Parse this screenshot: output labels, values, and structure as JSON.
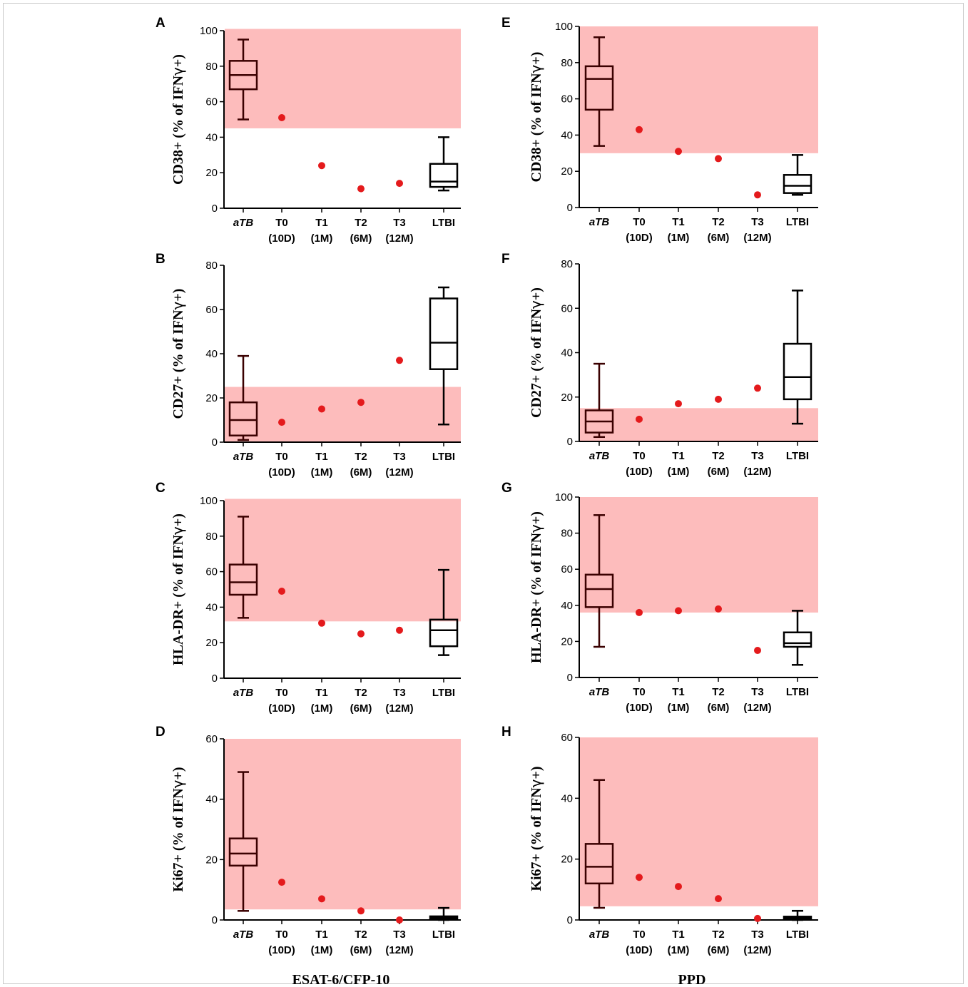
{
  "figure": {
    "group_labels": [
      "ESAT-6/CFP-10",
      "PPD"
    ]
  },
  "chart_data": [
    {
      "panel": "A",
      "type": "box",
      "ylabel_main": "CD38+ (% of IFN",
      "ylabel_greek": "γ",
      "ylabel_end": "+)",
      "ylim": [
        0,
        100
      ],
      "yticks": [
        0,
        20,
        40,
        60,
        80,
        100
      ],
      "categories": [
        [
          "aTB"
        ],
        [
          "T0",
          "(10D)"
        ],
        [
          "T1",
          "(1M)"
        ],
        [
          "T2",
          "(6M)"
        ],
        [
          "T3",
          "(12M)"
        ],
        [
          "LTBI"
        ]
      ],
      "shaded_range": [
        45,
        101
      ],
      "boxes": [
        {
          "category_index": 0,
          "min": 50,
          "q1": 67,
          "median": 75,
          "q3": 83,
          "max": 95,
          "color": "#3a0000"
        },
        {
          "category_index": 5,
          "min": 10,
          "q1": 12,
          "median": 15,
          "q3": 25,
          "max": 40,
          "color": "#000000"
        }
      ],
      "points": [
        {
          "category_index": 1,
          "y": 51
        },
        {
          "category_index": 2,
          "y": 24
        },
        {
          "category_index": 3,
          "y": 11
        },
        {
          "category_index": 4,
          "y": 14
        }
      ]
    },
    {
      "panel": "B",
      "type": "box",
      "ylabel_main": "CD27+ (% of IFN",
      "ylabel_greek": "γ",
      "ylabel_end": "+)",
      "ylim": [
        0,
        80
      ],
      "yticks": [
        0,
        20,
        40,
        60,
        80
      ],
      "categories": [
        [
          "aTB"
        ],
        [
          "T0",
          "(10D)"
        ],
        [
          "T1",
          "(1M)"
        ],
        [
          "T2",
          "(6M)"
        ],
        [
          "T3",
          "(12M)"
        ],
        [
          "LTBI"
        ]
      ],
      "shaded_range": [
        0,
        25
      ],
      "boxes": [
        {
          "category_index": 0,
          "min": 1,
          "q1": 3,
          "median": 10,
          "q3": 18,
          "max": 39,
          "color": "#3a0000"
        },
        {
          "category_index": 5,
          "min": 8,
          "q1": 33,
          "median": 45,
          "q3": 65,
          "max": 70,
          "color": "#000000"
        }
      ],
      "points": [
        {
          "category_index": 1,
          "y": 9
        },
        {
          "category_index": 2,
          "y": 15
        },
        {
          "category_index": 3,
          "y": 18
        },
        {
          "category_index": 4,
          "y": 37
        }
      ]
    },
    {
      "panel": "C",
      "type": "box",
      "ylabel_main": "HLA-DR+ (% of IFN",
      "ylabel_greek": "γ",
      "ylabel_end": "+)",
      "ylim": [
        0,
        100
      ],
      "yticks": [
        0,
        20,
        40,
        60,
        80,
        100
      ],
      "categories": [
        [
          "aTB"
        ],
        [
          "T0",
          "(10D)"
        ],
        [
          "T1",
          "(1M)"
        ],
        [
          "T2",
          "(6M)"
        ],
        [
          "T3",
          "(12M)"
        ],
        [
          "LTBI"
        ]
      ],
      "shaded_range": [
        32,
        101
      ],
      "boxes": [
        {
          "category_index": 0,
          "min": 34,
          "q1": 47,
          "median": 54,
          "q3": 64,
          "max": 91,
          "color": "#3a0000"
        },
        {
          "category_index": 5,
          "min": 13,
          "q1": 18,
          "median": 27,
          "q3": 33,
          "max": 61,
          "color": "#000000"
        }
      ],
      "points": [
        {
          "category_index": 1,
          "y": 49
        },
        {
          "category_index": 2,
          "y": 31
        },
        {
          "category_index": 3,
          "y": 25
        },
        {
          "category_index": 4,
          "y": 27
        }
      ]
    },
    {
      "panel": "D",
      "type": "box",
      "ylabel_main": "Ki67+ (% of IFN",
      "ylabel_greek": "γ",
      "ylabel_end": "+)",
      "ylim": [
        0,
        60
      ],
      "yticks": [
        0,
        20,
        40,
        60
      ],
      "categories": [
        [
          "aTB"
        ],
        [
          "T0",
          "(10D)"
        ],
        [
          "T1",
          "(1M)"
        ],
        [
          "T2",
          "(6M)"
        ],
        [
          "T3",
          "(12M)"
        ],
        [
          "LTBI"
        ]
      ],
      "shaded_range": [
        3.5,
        60
      ],
      "boxes": [
        {
          "category_index": 0,
          "min": 3,
          "q1": 18,
          "median": 22,
          "q3": 27,
          "max": 49,
          "color": "#3a0000"
        },
        {
          "category_index": 5,
          "min": 0,
          "q1": 0.2,
          "median": 0.7,
          "q3": 1.2,
          "max": 4,
          "color": "#000000"
        }
      ],
      "points": [
        {
          "category_index": 1,
          "y": 12.5
        },
        {
          "category_index": 2,
          "y": 7
        },
        {
          "category_index": 3,
          "y": 3
        },
        {
          "category_index": 4,
          "y": 0
        }
      ]
    },
    {
      "panel": "E",
      "type": "box",
      "ylabel_main": "CD38+ (% of IFN",
      "ylabel_greek": "γ",
      "ylabel_end": "+)",
      "ylim": [
        0,
        100
      ],
      "yticks": [
        0,
        20,
        40,
        60,
        80,
        100
      ],
      "categories": [
        [
          "aTB"
        ],
        [
          "T0",
          "(10D)"
        ],
        [
          "T1",
          "(1M)"
        ],
        [
          "T2",
          "(6M)"
        ],
        [
          "T3",
          "(12M)"
        ],
        [
          "LTBI"
        ]
      ],
      "shaded_range": [
        30,
        100
      ],
      "boxes": [
        {
          "category_index": 0,
          "min": 34,
          "q1": 54,
          "median": 71,
          "q3": 78,
          "max": 94,
          "color": "#3a0000"
        },
        {
          "category_index": 5,
          "min": 7,
          "q1": 8,
          "median": 12,
          "q3": 18,
          "max": 29,
          "color": "#000000"
        }
      ],
      "points": [
        {
          "category_index": 1,
          "y": 43
        },
        {
          "category_index": 2,
          "y": 31
        },
        {
          "category_index": 3,
          "y": 27
        },
        {
          "category_index": 4,
          "y": 7
        }
      ]
    },
    {
      "panel": "F",
      "type": "box",
      "ylabel_main": "CD27+ (% of IFN",
      "ylabel_greek": "γ",
      "ylabel_end": "+)",
      "ylim": [
        0,
        80
      ],
      "yticks": [
        0,
        20,
        40,
        60,
        80
      ],
      "categories": [
        [
          "aTB"
        ],
        [
          "T0",
          "(10D)"
        ],
        [
          "T1",
          "(1M)"
        ],
        [
          "T2",
          "(6M)"
        ],
        [
          "T3",
          "(12M)"
        ],
        [
          "LTBI"
        ]
      ],
      "shaded_range": [
        0,
        15
      ],
      "boxes": [
        {
          "category_index": 0,
          "min": 2,
          "q1": 4,
          "median": 9,
          "q3": 14,
          "max": 35,
          "color": "#3a0000"
        },
        {
          "category_index": 5,
          "min": 8,
          "q1": 19,
          "median": 29,
          "q3": 44,
          "max": 68,
          "color": "#000000"
        }
      ],
      "points": [
        {
          "category_index": 1,
          "y": 10
        },
        {
          "category_index": 2,
          "y": 17
        },
        {
          "category_index": 3,
          "y": 19
        },
        {
          "category_index": 4,
          "y": 24
        }
      ]
    },
    {
      "panel": "G",
      "type": "box",
      "ylabel_main": "HLA-DR+ (% of IFN",
      "ylabel_greek": "γ",
      "ylabel_end": "+)",
      "ylim": [
        0,
        100
      ],
      "yticks": [
        0,
        20,
        40,
        60,
        80,
        100
      ],
      "categories": [
        [
          "aTB"
        ],
        [
          "T0",
          "(10D)"
        ],
        [
          "T1",
          "(1M)"
        ],
        [
          "T2",
          "(6M)"
        ],
        [
          "T3",
          "(12M)"
        ],
        [
          "LTBI"
        ]
      ],
      "shaded_range": [
        36,
        100
      ],
      "boxes": [
        {
          "category_index": 0,
          "min": 17,
          "q1": 39,
          "median": 49,
          "q3": 57,
          "max": 90,
          "color": "#3a0000"
        },
        {
          "category_index": 5,
          "min": 7,
          "q1": 17,
          "median": 19,
          "q3": 25,
          "max": 37,
          "color": "#000000"
        }
      ],
      "points": [
        {
          "category_index": 1,
          "y": 36
        },
        {
          "category_index": 2,
          "y": 37
        },
        {
          "category_index": 3,
          "y": 38
        },
        {
          "category_index": 4,
          "y": 15
        }
      ]
    },
    {
      "panel": "H",
      "type": "box",
      "ylabel_main": "Ki67+ (% of IFN",
      "ylabel_greek": "γ",
      "ylabel_end": "+)",
      "ylim": [
        0,
        60
      ],
      "yticks": [
        0,
        20,
        40,
        60
      ],
      "categories": [
        [
          "aTB"
        ],
        [
          "T0",
          "(10D)"
        ],
        [
          "T1",
          "(1M)"
        ],
        [
          "T2",
          "(6M)"
        ],
        [
          "T3",
          "(12M)"
        ],
        [
          "LTBI"
        ]
      ],
      "shaded_range": [
        4.5,
        60
      ],
      "boxes": [
        {
          "category_index": 0,
          "min": 4,
          "q1": 12,
          "median": 17.5,
          "q3": 25,
          "max": 46,
          "color": "#3a0000"
        },
        {
          "category_index": 5,
          "min": 0,
          "q1": 0.2,
          "median": 0.6,
          "q3": 1.1,
          "max": 3,
          "color": "#000000"
        }
      ],
      "points": [
        {
          "category_index": 1,
          "y": 14
        },
        {
          "category_index": 2,
          "y": 11
        },
        {
          "category_index": 3,
          "y": 7
        },
        {
          "category_index": 4,
          "y": 0.5
        }
      ]
    }
  ],
  "style": {
    "shade_color": "#fdbcbc",
    "point_color": "#e41a1c",
    "axis_color": "#000000"
  }
}
